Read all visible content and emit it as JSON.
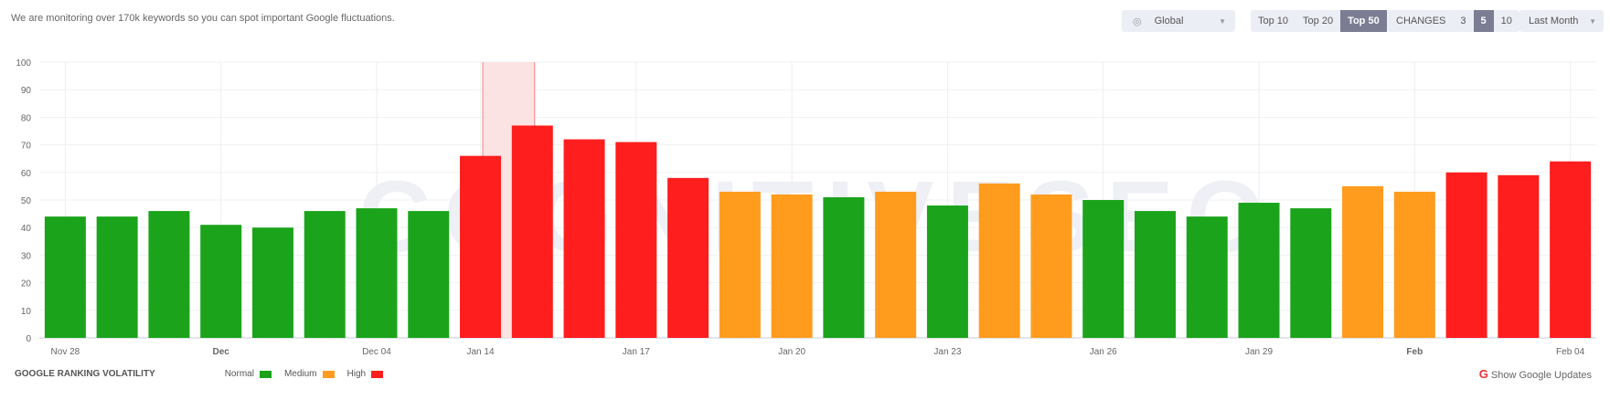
{
  "header": {
    "intro": "We are monitoring over 170k keywords so you can spot important Google fluctuations."
  },
  "controls": {
    "region": {
      "icon": "globe-icon",
      "value": "Global"
    },
    "top": {
      "options": [
        "Top 10",
        "Top 20",
        "Top 50"
      ],
      "selected": "Top 50"
    },
    "changes": {
      "label": "CHANGES",
      "options": [
        "3",
        "5",
        "10"
      ],
      "selected": "5"
    },
    "period": {
      "value": "Last Month"
    }
  },
  "watermark": "COGNITIVESEO",
  "legend": {
    "title": "GOOGLE RANKING VOLATILITY",
    "items": [
      {
        "label": "Normal",
        "color": "#1ba41b"
      },
      {
        "label": "Medium",
        "color": "#ff9c1e"
      },
      {
        "label": "High",
        "color": "#ff1e1e"
      }
    ]
  },
  "show_updates": "Show Google Updates",
  "chart_data": {
    "type": "bar",
    "ylim": [
      0,
      100
    ],
    "yticks": [
      0,
      10,
      20,
      30,
      40,
      50,
      60,
      70,
      80,
      90,
      100
    ],
    "grid": true,
    "legend_placement": "bottom-left",
    "highlighted_category": "Jan 15",
    "categories": [
      "Nov 28",
      "Nov 29",
      "Nov 30",
      "Dec 01",
      "Dec 02",
      "Dec 03",
      "Dec 04",
      "Dec 05",
      "Jan 14",
      "Jan 15",
      "Jan 16",
      "Jan 17",
      "Jan 18",
      "Jan 19",
      "Jan 20",
      "Jan 21",
      "Jan 22",
      "Jan 23",
      "Jan 24",
      "Jan 25",
      "Jan 26",
      "Jan 27",
      "Jan 28",
      "Jan 29",
      "Jan 30",
      "Jan 31",
      "Feb 01",
      "Feb 02",
      "Feb 03",
      "Feb 04"
    ],
    "tick_labels": [
      {
        "index": 0,
        "label": "Nov 28"
      },
      {
        "index": 3,
        "label": "Dec",
        "bold": true
      },
      {
        "index": 6,
        "label": "Dec 04"
      },
      {
        "index": 8,
        "label": "Jan 14"
      },
      {
        "index": 11,
        "label": "Jan 17"
      },
      {
        "index": 14,
        "label": "Jan 20"
      },
      {
        "index": 17,
        "label": "Jan 23"
      },
      {
        "index": 20,
        "label": "Jan 26"
      },
      {
        "index": 23,
        "label": "Jan 29"
      },
      {
        "index": 26,
        "label": "Feb",
        "bold": true
      },
      {
        "index": 29,
        "label": "Feb 04"
      }
    ],
    "values": [
      44,
      44,
      46,
      41,
      40,
      46,
      47,
      46,
      66,
      77,
      72,
      71,
      58,
      53,
      52,
      51,
      53,
      48,
      56,
      52,
      50,
      46,
      44,
      49,
      47,
      55,
      53,
      60,
      59,
      64
    ],
    "levels": [
      "Normal",
      "Normal",
      "Normal",
      "Normal",
      "Normal",
      "Normal",
      "Normal",
      "Normal",
      "High",
      "High",
      "High",
      "High",
      "High",
      "Medium",
      "Medium",
      "Normal",
      "Medium",
      "Normal",
      "Medium",
      "Medium",
      "Normal",
      "Normal",
      "Normal",
      "Normal",
      "Normal",
      "Medium",
      "Medium",
      "High",
      "High",
      "High"
    ]
  }
}
